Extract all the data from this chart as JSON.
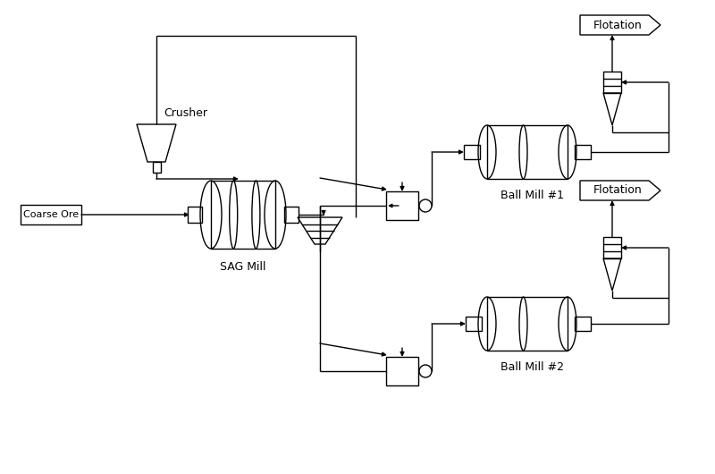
{
  "bg_color": "#ffffff",
  "line_color": "#000000",
  "text_color": "#000000",
  "labels": {
    "coarse_ore": "Coarse Ore",
    "crusher": "Crusher",
    "sag_mill": "SAG Mill",
    "ball_mill1": "Ball Mill #1",
    "ball_mill2": "Ball Mill #2",
    "flotation1": "Flotation",
    "flotation2": "Flotation"
  },
  "fontsize": 9
}
